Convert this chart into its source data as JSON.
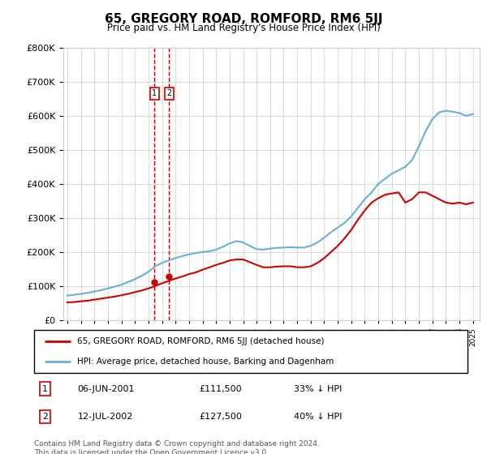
{
  "title": "65, GREGORY ROAD, ROMFORD, RM6 5JJ",
  "subtitle": "Price paid vs. HM Land Registry's House Price Index (HPI)",
  "legend_line1": "65, GREGORY ROAD, ROMFORD, RM6 5JJ (detached house)",
  "legend_line2": "HPI: Average price, detached house, Barking and Dagenham",
  "footnote": "Contains HM Land Registry data © Crown copyright and database right 2024.\nThis data is licensed under the Open Government Licence v3.0.",
  "sale1_date": "06-JUN-2001",
  "sale1_price": "£111,500",
  "sale1_hpi": "33% ↓ HPI",
  "sale1_year": 2001.44,
  "sale1_value": 111500,
  "sale2_date": "12-JUL-2002",
  "sale2_price": "£127,500",
  "sale2_hpi": "40% ↓ HPI",
  "sale2_year": 2002.53,
  "sale2_value": 127500,
  "hpi_color": "#6baed6",
  "price_color": "#cc0000",
  "marker_box_color": "#cc0000",
  "vline_color": "#cc0000",
  "ylim": [
    0,
    800000
  ],
  "yticks": [
    0,
    100000,
    200000,
    300000,
    400000,
    500000,
    600000,
    700000,
    800000
  ],
  "xlim_start": 1994.7,
  "xlim_end": 2025.5,
  "hpi_years": [
    1995.0,
    1995.5,
    1996.0,
    1996.5,
    1997.0,
    1997.5,
    1998.0,
    1998.5,
    1999.0,
    1999.5,
    2000.0,
    2000.5,
    2001.0,
    2001.5,
    2002.0,
    2002.5,
    2003.0,
    2003.5,
    2004.0,
    2004.5,
    2005.0,
    2005.5,
    2006.0,
    2006.5,
    2007.0,
    2007.5,
    2008.0,
    2008.5,
    2009.0,
    2009.5,
    2010.0,
    2010.5,
    2011.0,
    2011.5,
    2012.0,
    2012.5,
    2013.0,
    2013.5,
    2014.0,
    2014.5,
    2015.0,
    2015.5,
    2016.0,
    2016.5,
    2017.0,
    2017.5,
    2018.0,
    2018.5,
    2019.0,
    2019.5,
    2020.0,
    2020.5,
    2021.0,
    2021.5,
    2022.0,
    2022.5,
    2023.0,
    2023.5,
    2024.0,
    2024.5,
    2025.0
  ],
  "hpi_values": [
    72000,
    74000,
    77000,
    80000,
    84000,
    88000,
    93000,
    98000,
    104000,
    112000,
    120000,
    130000,
    142000,
    158000,
    168000,
    175000,
    182000,
    188000,
    193000,
    197000,
    200000,
    202000,
    207000,
    215000,
    225000,
    232000,
    228000,
    218000,
    208000,
    207000,
    210000,
    212000,
    213000,
    214000,
    213000,
    213000,
    218000,
    228000,
    242000,
    258000,
    272000,
    285000,
    305000,
    330000,
    355000,
    375000,
    400000,
    415000,
    430000,
    440000,
    450000,
    470000,
    510000,
    555000,
    590000,
    610000,
    615000,
    612000,
    608000,
    600000,
    605000
  ],
  "price_years": [
    1995.0,
    1995.5,
    1996.0,
    1996.5,
    1997.0,
    1997.5,
    1998.0,
    1998.5,
    1999.0,
    1999.5,
    2000.0,
    2000.5,
    2001.0,
    2001.5,
    2002.0,
    2002.5,
    2003.0,
    2003.5,
    2004.0,
    2004.5,
    2005.0,
    2005.5,
    2006.0,
    2006.5,
    2007.0,
    2007.5,
    2008.0,
    2008.5,
    2009.0,
    2009.5,
    2010.0,
    2010.5,
    2011.0,
    2011.5,
    2012.0,
    2012.5,
    2013.0,
    2013.5,
    2014.0,
    2014.5,
    2015.0,
    2015.5,
    2016.0,
    2016.5,
    2017.0,
    2017.5,
    2018.0,
    2018.5,
    2019.0,
    2019.5,
    2020.0,
    2020.5,
    2021.0,
    2021.5,
    2022.0,
    2022.5,
    2023.0,
    2023.5,
    2024.0,
    2024.5,
    2025.0
  ],
  "price_values": [
    52000,
    53000,
    55000,
    57000,
    60000,
    63000,
    66000,
    69000,
    73000,
    77000,
    82000,
    87000,
    93000,
    100000,
    108000,
    115000,
    122000,
    128000,
    135000,
    140000,
    148000,
    155000,
    162000,
    168000,
    175000,
    178000,
    178000,
    170000,
    162000,
    155000,
    155000,
    157000,
    158000,
    158000,
    155000,
    155000,
    158000,
    168000,
    182000,
    200000,
    218000,
    240000,
    265000,
    295000,
    322000,
    345000,
    358000,
    368000,
    372000,
    375000,
    345000,
    355000,
    375000,
    375000,
    365000,
    355000,
    345000,
    342000,
    345000,
    340000,
    345000
  ]
}
